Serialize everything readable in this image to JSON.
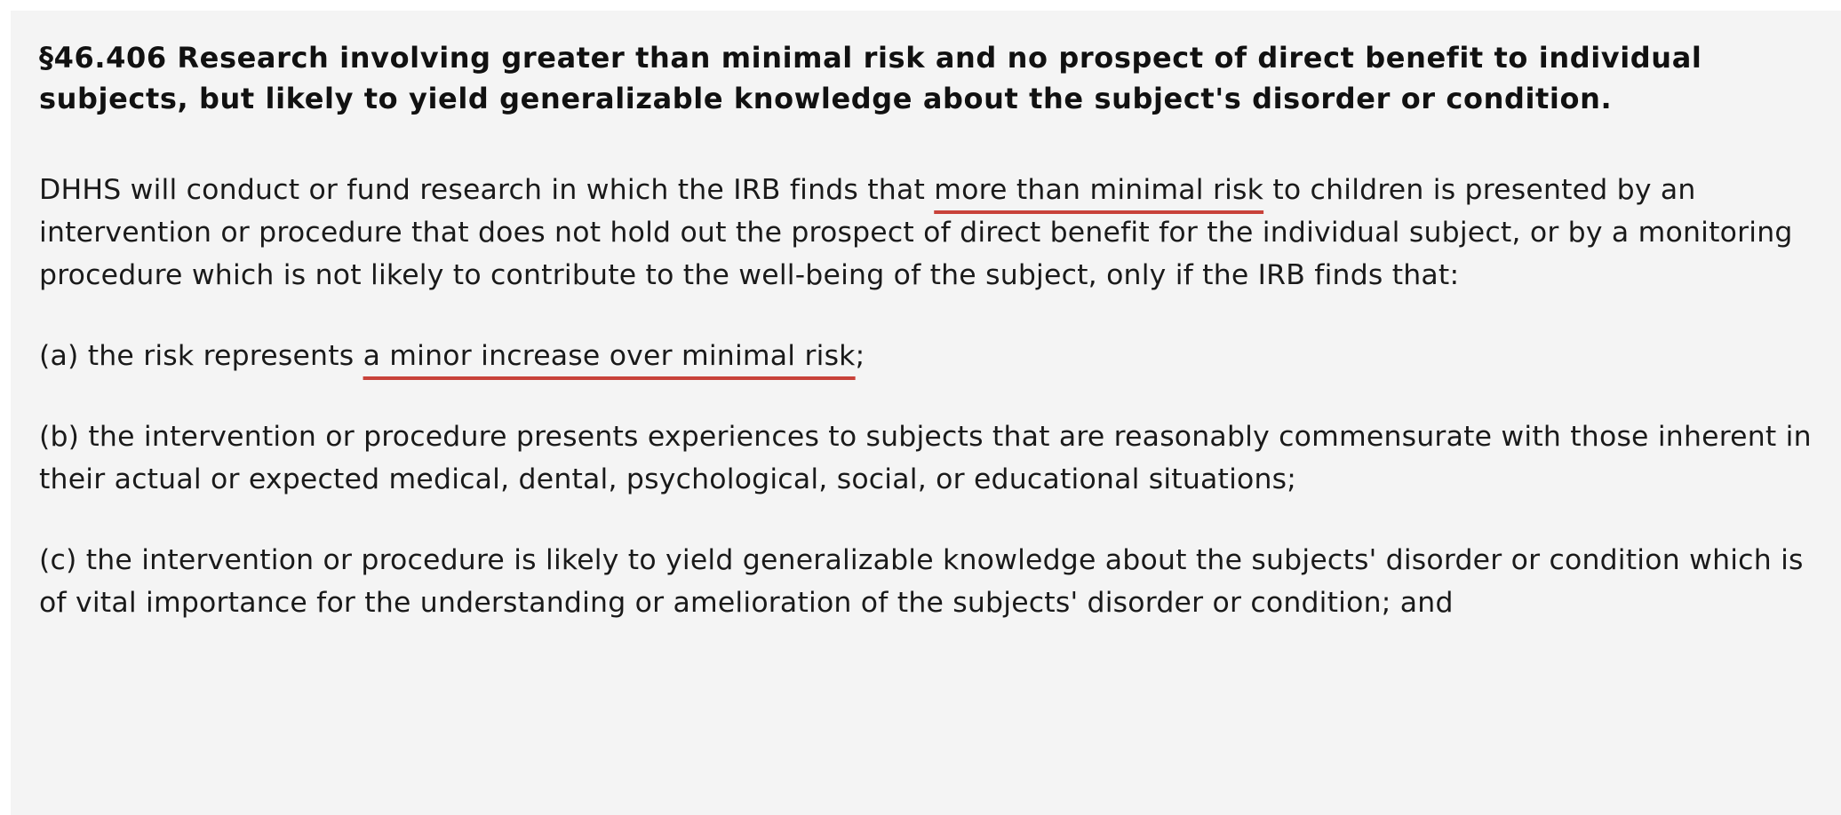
{
  "section": {
    "heading": "§46.406 Research involving greater than minimal risk and no prospect of direct benefit to individual subjects, but likely to yield generalizable knowledge about the subject's disorder or condition."
  },
  "intro": {
    "before": "DHHS will conduct or fund research in which the IRB finds that ",
    "highlight": "more than minimal risk",
    "after": " to children is presented by an intervention or procedure that does not hold out the prospect of direct benefit for the individual subject, or by a monitoring procedure which is not likely to contribute to the well-being of the subject, only if the IRB finds that:"
  },
  "items": {
    "a": {
      "before": "(a) the risk represents ",
      "highlight": "a minor increase over minimal risk",
      "after": ";"
    },
    "b": {
      "text": "(b) the intervention or procedure presents experiences to subjects that are reasonably commensurate with those inherent in their actual or expected medical, dental, psychological, social, or educational situations;"
    },
    "c": {
      "text": "(c) the intervention or procedure is likely to yield generalizable knowledge about the subjects' disorder or condition which is of vital importance for the understanding or amelioration of the subjects' disorder or condition; and"
    }
  },
  "colors": {
    "underline": "#c8423a",
    "background": "#f4f4f4",
    "text": "#111111"
  }
}
